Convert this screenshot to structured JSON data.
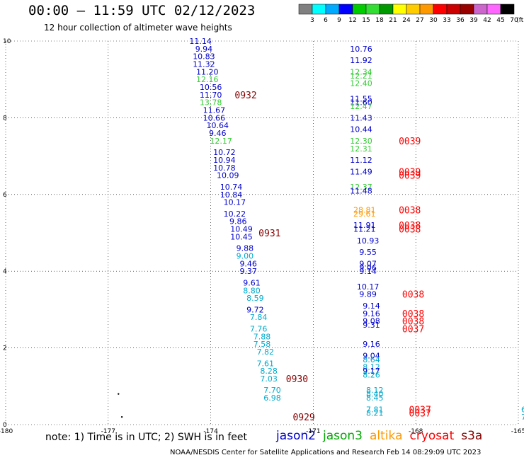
{
  "header": {
    "title": "00:00 — 11:59 UTC 02/12/2023",
    "subtitle": "12 hour collection of altimeter wave heights"
  },
  "colorbar": {
    "unit": "(ft)",
    "bins": [
      {
        "color": "#808080",
        "label": "3"
      },
      {
        "color": "#00ffff",
        "label": "6"
      },
      {
        "color": "#00aaff",
        "label": "9"
      },
      {
        "color": "#0000ff",
        "label": "12"
      },
      {
        "color": "#00cc00",
        "label": "15"
      },
      {
        "color": "#33dd33",
        "label": "18"
      },
      {
        "color": "#009900",
        "label": "21"
      },
      {
        "color": "#ffff00",
        "label": "24"
      },
      {
        "color": "#ffcc00",
        "label": "27"
      },
      {
        "color": "#ff9900",
        "label": "30"
      },
      {
        "color": "#ff0000",
        "label": "33"
      },
      {
        "color": "#cc0000",
        "label": "36"
      },
      {
        "color": "#990000",
        "label": "39"
      },
      {
        "color": "#cc66cc",
        "label": "42"
      },
      {
        "color": "#ff66ff",
        "label": "45"
      },
      {
        "color": "#000000",
        "label": "70"
      }
    ]
  },
  "footer": {
    "note": "note: 1) Time is in UTC; 2) SWH is in feet",
    "satellites": [
      {
        "name": "jason2",
        "color": "#0000cc"
      },
      {
        "name": "jason3",
        "color": "#00aa00"
      },
      {
        "name": "altika",
        "color": "#ff9900"
      },
      {
        "name": "cryosat",
        "color": "#ff0000"
      },
      {
        "name": "s3a",
        "color": "#880000"
      }
    ],
    "credit": "NOAA/NESDIS Center for Satellite Applications and Research    Feb 14 08:29:09 UTC 2023"
  },
  "chart_data": {
    "type": "scatter",
    "xlim": [
      -180,
      -165
    ],
    "ylim": [
      0,
      10
    ],
    "x_ticks": [
      "-180",
      "-177",
      "-174",
      "-171",
      "-168",
      "-165"
    ],
    "y_ticks": [
      "0",
      "2",
      "4",
      "6",
      "8",
      "10"
    ],
    "grid": true,
    "track_labels": [
      {
        "x": -174.3,
        "y": 10.0,
        "label": "11.14",
        "color": "#0000cc"
      },
      {
        "x": -174.2,
        "y": 9.8,
        "label": "9.94",
        "color": "#0000cc"
      },
      {
        "x": -174.2,
        "y": 9.6,
        "label": "10.83",
        "color": "#0000cc"
      },
      {
        "x": -174.2,
        "y": 9.4,
        "label": "11.32",
        "color": "#0000cc"
      },
      {
        "x": -174.1,
        "y": 9.2,
        "label": "11.20",
        "color": "#0000cc"
      },
      {
        "x": -174.1,
        "y": 9.0,
        "label": "12.16",
        "color": "#33cc33"
      },
      {
        "x": -174.0,
        "y": 8.8,
        "label": "10.56",
        "color": "#0000cc"
      },
      {
        "x": -174.0,
        "y": 8.6,
        "label": "11.70",
        "color": "#0000cc"
      },
      {
        "x": -174.0,
        "y": 8.4,
        "label": "13.78",
        "color": "#33cc33"
      },
      {
        "x": -173.9,
        "y": 8.2,
        "label": "11.67",
        "color": "#0000cc"
      },
      {
        "x": -173.9,
        "y": 8.0,
        "label": "10.66",
        "color": "#0000cc"
      },
      {
        "x": -173.8,
        "y": 7.8,
        "label": "10.64",
        "color": "#0000cc"
      },
      {
        "x": -173.8,
        "y": 7.6,
        "label": "9.46",
        "color": "#0000cc"
      },
      {
        "x": -173.7,
        "y": 7.4,
        "label": "12.17",
        "color": "#33cc33"
      },
      {
        "x": -173.6,
        "y": 7.1,
        "label": "10.72",
        "color": "#0000cc"
      },
      {
        "x": -173.6,
        "y": 6.9,
        "label": "10.94",
        "color": "#0000cc"
      },
      {
        "x": -173.6,
        "y": 6.7,
        "label": "10.78",
        "color": "#0000cc"
      },
      {
        "x": -173.5,
        "y": 6.5,
        "label": "10.09",
        "color": "#0000cc"
      },
      {
        "x": -173.4,
        "y": 6.2,
        "label": "10.74",
        "color": "#0000cc"
      },
      {
        "x": -173.4,
        "y": 6.0,
        "label": "10.84",
        "color": "#0000cc"
      },
      {
        "x": -173.3,
        "y": 5.8,
        "label": "10.17",
        "color": "#0000cc"
      },
      {
        "x": -173.3,
        "y": 5.5,
        "label": "10.22",
        "color": "#0000cc"
      },
      {
        "x": -173.2,
        "y": 5.3,
        "label": "9.86",
        "color": "#0000cc"
      },
      {
        "x": -173.1,
        "y": 5.1,
        "label": "10.49",
        "color": "#0000cc"
      },
      {
        "x": -173.1,
        "y": 4.9,
        "label": "10.45",
        "color": "#0000cc"
      },
      {
        "x": -173.0,
        "y": 4.6,
        "label": "9.88",
        "color": "#0000cc"
      },
      {
        "x": -173.0,
        "y": 4.4,
        "label": "9.00",
        "color": "#00aacc"
      },
      {
        "x": -172.9,
        "y": 4.2,
        "label": "9.46",
        "color": "#0000cc"
      },
      {
        "x": -172.9,
        "y": 4.0,
        "label": "9.37",
        "color": "#0000cc"
      },
      {
        "x": -172.8,
        "y": 3.7,
        "label": "9.61",
        "color": "#0000cc"
      },
      {
        "x": -172.8,
        "y": 3.5,
        "label": "8.80",
        "color": "#00aacc"
      },
      {
        "x": -172.7,
        "y": 3.3,
        "label": "8.59",
        "color": "#00aacc"
      },
      {
        "x": -172.7,
        "y": 3.0,
        "label": "9.72",
        "color": "#0000cc"
      },
      {
        "x": -172.6,
        "y": 2.8,
        "label": "7.84",
        "color": "#00aacc"
      },
      {
        "x": -172.6,
        "y": 2.5,
        "label": "7.76",
        "color": "#00aacc"
      },
      {
        "x": -172.5,
        "y": 2.3,
        "label": "7.88",
        "color": "#00aacc"
      },
      {
        "x": -172.5,
        "y": 2.1,
        "label": "7.58",
        "color": "#00aacc"
      },
      {
        "x": -172.4,
        "y": 1.9,
        "label": "7.82",
        "color": "#00aacc"
      },
      {
        "x": -172.4,
        "y": 1.6,
        "label": "7.61",
        "color": "#00aacc"
      },
      {
        "x": -172.3,
        "y": 1.4,
        "label": "8.28",
        "color": "#00aacc"
      },
      {
        "x": -172.3,
        "y": 1.2,
        "label": "7.03",
        "color": "#00aacc"
      },
      {
        "x": -172.2,
        "y": 0.9,
        "label": "7.70",
        "color": "#00aacc"
      },
      {
        "x": -172.2,
        "y": 0.7,
        "label": "6.98",
        "color": "#00aacc"
      },
      {
        "x": -169.6,
        "y": 9.8,
        "label": "10.76",
        "color": "#0000cc"
      },
      {
        "x": -169.6,
        "y": 9.5,
        "label": "11.92",
        "color": "#0000cc"
      },
      {
        "x": -169.6,
        "y": 9.2,
        "label": "12.34",
        "color": "#33cc33"
      },
      {
        "x": -169.6,
        "y": 9.1,
        "label": "12.21",
        "color": "#33cc33"
      },
      {
        "x": -169.6,
        "y": 8.9,
        "label": "12.40",
        "color": "#33cc33"
      },
      {
        "x": -169.6,
        "y": 8.5,
        "label": "11.55",
        "color": "#0000cc"
      },
      {
        "x": -169.6,
        "y": 8.4,
        "label": "11.60",
        "color": "#0000cc"
      },
      {
        "x": -169.6,
        "y": 8.3,
        "label": "12.47",
        "color": "#33cc33"
      },
      {
        "x": -169.6,
        "y": 8.0,
        "label": "11.43",
        "color": "#0000cc"
      },
      {
        "x": -169.6,
        "y": 7.7,
        "label": "10.44",
        "color": "#0000cc"
      },
      {
        "x": -169.6,
        "y": 7.4,
        "label": "12.30",
        "color": "#33cc33"
      },
      {
        "x": -169.6,
        "y": 7.2,
        "label": "12.31",
        "color": "#33cc33"
      },
      {
        "x": -169.6,
        "y": 6.9,
        "label": "11.12",
        "color": "#0000cc"
      },
      {
        "x": -169.6,
        "y": 6.6,
        "label": "11.49",
        "color": "#0000cc"
      },
      {
        "x": -169.6,
        "y": 6.2,
        "label": "12.37",
        "color": "#33cc33"
      },
      {
        "x": -169.6,
        "y": 6.1,
        "label": "11.48",
        "color": "#0000cc"
      },
      {
        "x": -169.5,
        "y": 5.6,
        "label": "28.81",
        "color": "#ff9900"
      },
      {
        "x": -169.5,
        "y": 5.5,
        "label": "29.61",
        "color": "#ff9900"
      },
      {
        "x": -169.5,
        "y": 5.2,
        "label": "11.91",
        "color": "#0000cc"
      },
      {
        "x": -169.5,
        "y": 5.1,
        "label": "11.21",
        "color": "#0000cc"
      },
      {
        "x": -169.4,
        "y": 4.8,
        "label": "10.93",
        "color": "#0000cc"
      },
      {
        "x": -169.4,
        "y": 4.5,
        "label": "9.55",
        "color": "#0000cc"
      },
      {
        "x": -169.4,
        "y": 4.2,
        "label": "9.07",
        "color": "#0000cc"
      },
      {
        "x": -169.4,
        "y": 4.1,
        "label": "9.06",
        "color": "#0000cc"
      },
      {
        "x": -169.4,
        "y": 4.0,
        "label": "9.14",
        "color": "#0000cc"
      },
      {
        "x": -169.4,
        "y": 3.6,
        "label": "10.17",
        "color": "#0000cc"
      },
      {
        "x": -169.4,
        "y": 3.4,
        "label": "9.89",
        "color": "#0000cc"
      },
      {
        "x": -169.3,
        "y": 3.1,
        "label": "9.14",
        "color": "#0000cc"
      },
      {
        "x": -169.3,
        "y": 2.9,
        "label": "9.16",
        "color": "#0000cc"
      },
      {
        "x": -169.3,
        "y": 2.7,
        "label": "9.08",
        "color": "#0000cc"
      },
      {
        "x": -169.3,
        "y": 2.6,
        "label": "9.31",
        "color": "#0000cc"
      },
      {
        "x": -169.3,
        "y": 2.1,
        "label": "9.16",
        "color": "#0000cc"
      },
      {
        "x": -169.3,
        "y": 1.8,
        "label": "9.04",
        "color": "#0000cc"
      },
      {
        "x": -169.3,
        "y": 1.7,
        "label": "8.64",
        "color": "#00aacc"
      },
      {
        "x": -169.3,
        "y": 1.5,
        "label": "8.12",
        "color": "#00aacc"
      },
      {
        "x": -169.3,
        "y": 1.4,
        "label": "9.17",
        "color": "#0000cc"
      },
      {
        "x": -169.3,
        "y": 1.3,
        "label": "8.26",
        "color": "#00aacc"
      },
      {
        "x": -169.2,
        "y": 0.9,
        "label": "8.12",
        "color": "#00aacc"
      },
      {
        "x": -169.2,
        "y": 0.8,
        "label": "8.40",
        "color": "#00aacc"
      },
      {
        "x": -169.2,
        "y": 0.7,
        "label": "8.45",
        "color": "#00aacc"
      },
      {
        "x": -169.2,
        "y": 0.4,
        "label": "7.81",
        "color": "#00aacc"
      },
      {
        "x": -169.2,
        "y": 0.3,
        "label": "8.21",
        "color": "#00aacc"
      }
    ],
    "time_labels": [
      {
        "x": -173.3,
        "y": 8.6,
        "label": "0932",
        "color": "#880000"
      },
      {
        "x": -172.6,
        "y": 5.0,
        "label": "0931",
        "color": "#880000"
      },
      {
        "x": -171.8,
        "y": 1.2,
        "label": "0930",
        "color": "#880000"
      },
      {
        "x": -171.6,
        "y": 0.2,
        "label": "0929",
        "color": "#880000"
      },
      {
        "x": -168.5,
        "y": 7.4,
        "label": "0039",
        "color": "#ff0000"
      },
      {
        "x": -168.5,
        "y": 6.6,
        "label": "0039",
        "color": "#ff0000"
      },
      {
        "x": -168.5,
        "y": 6.5,
        "label": "0039",
        "color": "#ff0000"
      },
      {
        "x": -168.5,
        "y": 5.6,
        "label": "0038",
        "color": "#ff0000"
      },
      {
        "x": -168.5,
        "y": 5.2,
        "label": "0038",
        "color": "#ff0000"
      },
      {
        "x": -168.5,
        "y": 5.1,
        "label": "0038",
        "color": "#ff0000"
      },
      {
        "x": -168.4,
        "y": 3.4,
        "label": "0038",
        "color": "#ff0000"
      },
      {
        "x": -168.4,
        "y": 2.9,
        "label": "0038",
        "color": "#ff0000"
      },
      {
        "x": -168.4,
        "y": 2.7,
        "label": "0038",
        "color": "#ff0000"
      },
      {
        "x": -168.4,
        "y": 2.5,
        "label": "0037",
        "color": "#ff0000"
      },
      {
        "x": -168.2,
        "y": 0.4,
        "label": "0037",
        "color": "#ff0000"
      },
      {
        "x": -168.2,
        "y": 0.3,
        "label": "0037",
        "color": "#ff0000"
      }
    ],
    "dots": [
      {
        "x": -176.7,
        "y": 0.8
      },
      {
        "x": -176.6,
        "y": 0.2
      }
    ],
    "edge_labels": [
      {
        "x": -165.0,
        "y": 0.4,
        "label": "6",
        "color": "#00aacc"
      },
      {
        "x": -165.0,
        "y": 0.2,
        "label": "7",
        "color": "#00aacc"
      }
    ]
  }
}
